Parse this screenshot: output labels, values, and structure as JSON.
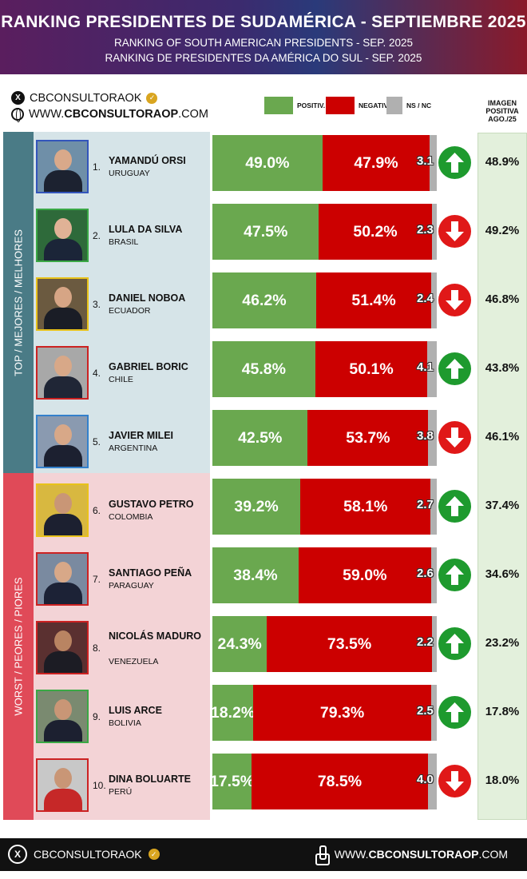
{
  "header": {
    "title": "RANKING PRESIDENTES DE SUDAMÉRICA - SEPTIEMBRE 2025",
    "subtitle_en": "RANKING OF SOUTH AMERICAN PRESIDENTS - SEP. 2025",
    "subtitle_pt": "RANKING DE PRESIDENTES DA AMÉRICA DO SUL - SEP. 2025"
  },
  "social": {
    "handle": "CBCONSULTORAOK",
    "web_prefix": "WWW.",
    "web_main": "CBCONSULTORAOP",
    "web_suffix": ".COM",
    "x_icon": "x-logo-icon",
    "verified_icon": "verified-badge-icon",
    "globe_icon": "globe-icon"
  },
  "legend": {
    "positive": "POSITIV.",
    "negative": "NEGATIV.",
    "ns": "NS / NC"
  },
  "image_header": [
    "IMAGEN",
    "POSITIVA",
    "AGO./25"
  ],
  "bands": {
    "top": "TOP / MEJORES / MELHORES",
    "bottom": "WORST / PEORES / PIORES"
  },
  "colors": {
    "positive": "#6aa84f",
    "negative": "#cc0000",
    "ns": "#b0b0b0",
    "up_arrow": "#1e9a2e",
    "down_arrow": "#e01818",
    "top_band": "#4a7b86",
    "bottom_band": "#e04a58"
  },
  "chart_data": {
    "type": "bar",
    "stacked": true,
    "orientation": "horizontal",
    "title": "RANKING PRESIDENTES DE SUDAMÉRICA - SEPTIEMBRE 2025",
    "categories": [
      "YAMANDÚ ORSI",
      "LULA DA SILVA",
      "DANIEL NOBOA",
      "GABRIEL BORIC",
      "JAVIER MILEI",
      "GUSTAVO PETRO",
      "SANTIAGO PEÑA",
      "NICOLÁS MADURO",
      "LUIS ARCE",
      "DINA BOLUARTE"
    ],
    "series": [
      {
        "name": "POSITIV.",
        "values": [
          49.0,
          47.5,
          46.2,
          45.8,
          42.5,
          39.2,
          38.4,
          24.3,
          18.2,
          17.5
        ]
      },
      {
        "name": "NEGATIV.",
        "values": [
          47.9,
          50.2,
          51.4,
          50.1,
          53.7,
          58.1,
          59.0,
          73.5,
          79.3,
          78.5
        ]
      },
      {
        "name": "NS / NC",
        "values": [
          3.1,
          2.3,
          2.4,
          4.1,
          3.8,
          2.7,
          2.6,
          2.2,
          2.5,
          4.0
        ]
      }
    ],
    "xlim": [
      0,
      100
    ],
    "legend_position": "top"
  },
  "rows": [
    {
      "rank": "1.",
      "name": "YAMANDÚ ORSI",
      "country": "URUGUAY",
      "pos": 49.0,
      "neg": 47.9,
      "ns": 3.1,
      "pos_label": "49.0%",
      "neg_label": "47.9%",
      "ns_label": "3.1",
      "trend": "up",
      "trend_icon": "arrow-up-icon",
      "prev": "48.9%",
      "frame": "#3355bb",
      "bg": "#6f8fa8",
      "suit": "#1c2230",
      "skin": "#d9a98a"
    },
    {
      "rank": "2.",
      "name": "LULA DA SILVA",
      "country": "BRASIL",
      "pos": 47.5,
      "neg": 50.2,
      "ns": 2.3,
      "pos_label": "47.5%",
      "neg_label": "50.2%",
      "ns_label": "2.3",
      "trend": "down",
      "trend_icon": "arrow-down-icon",
      "prev": "49.2%",
      "frame": "#3aa845",
      "bg": "#2e6a3a",
      "suit": "#1b2538",
      "skin": "#e0b296"
    },
    {
      "rank": "3.",
      "name": "DANIEL NOBOA",
      "country": "ECUADOR",
      "pos": 46.2,
      "neg": 51.4,
      "ns": 2.4,
      "pos_label": "46.2%",
      "neg_label": "51.4%",
      "ns_label": "2.4",
      "trend": "down",
      "trend_icon": "arrow-down-icon",
      "prev": "46.8%",
      "frame": "#e8c21a",
      "bg": "#6b5a40",
      "suit": "#1a1d26",
      "skin": "#d6a585"
    },
    {
      "rank": "4.",
      "name": "GABRIEL BORIC",
      "country": "CHILE",
      "pos": 45.8,
      "neg": 50.1,
      "ns": 4.1,
      "pos_label": "45.8%",
      "neg_label": "50.1%",
      "ns_label": "4.1",
      "trend": "up",
      "trend_icon": "arrow-up-icon",
      "prev": "43.8%",
      "frame": "#cc2222",
      "bg": "#a8a8a8",
      "suit": "#202636",
      "skin": "#d8a888"
    },
    {
      "rank": "5.",
      "name": "JAVIER MILEI",
      "country": "ARGENTINA",
      "pos": 42.5,
      "neg": 53.7,
      "ns": 3.8,
      "pos_label": "42.5%",
      "neg_label": "53.7%",
      "ns_label": "3.8",
      "trend": "down",
      "trend_icon": "arrow-down-icon",
      "prev": "46.1%",
      "frame": "#3380cc",
      "bg": "#8a9ab0",
      "suit": "#1c2030",
      "skin": "#d8a888"
    },
    {
      "rank": "6.",
      "name": "GUSTAVO PETRO",
      "country": "COLOMBIA",
      "pos": 39.2,
      "neg": 58.1,
      "ns": 2.7,
      "pos_label": "39.2%",
      "neg_label": "58.1%",
      "ns_label": "2.7",
      "trend": "up",
      "trend_icon": "arrow-up-icon",
      "prev": "37.4%",
      "frame": "#e8c21a",
      "bg": "#d8b840",
      "suit": "#1c2030",
      "skin": "#c99676"
    },
    {
      "rank": "7.",
      "name": "SANTIAGO PEÑA",
      "country": "PARAGUAY",
      "pos": 38.4,
      "neg": 59.0,
      "ns": 2.6,
      "pos_label": "38.4%",
      "neg_label": "59.0%",
      "ns_label": "2.6",
      "trend": "up",
      "trend_icon": "arrow-up-icon",
      "prev": "34.6%",
      "frame": "#cc2222",
      "bg": "#7a8aa0",
      "suit": "#1c2236",
      "skin": "#d8a888"
    },
    {
      "rank": "8.",
      "name": "NICOLÁS MADURO",
      "country": "VENEZUELA",
      "pos": 24.3,
      "neg": 73.5,
      "ns": 2.2,
      "pos_label": "24.3%",
      "neg_label": "73.5%",
      "ns_label": "2.2",
      "trend": "up",
      "trend_icon": "arrow-up-icon",
      "prev": "23.2%",
      "frame": "#cc2222",
      "bg": "#5a3030",
      "suit": "#1c1c24",
      "skin": "#b98462"
    },
    {
      "rank": "9.",
      "name": "LUIS ARCE",
      "country": "BOLIVIA",
      "pos": 18.2,
      "neg": 79.3,
      "ns": 2.5,
      "pos_label": "18.2%",
      "neg_label": "79.3%",
      "ns_label": "2.5",
      "trend": "up",
      "trend_icon": "arrow-up-icon",
      "prev": "17.8%",
      "frame": "#3aa845",
      "bg": "#7a8a70",
      "suit": "#1c2030",
      "skin": "#c99676"
    },
    {
      "rank": "10.",
      "name": "DINA BOLUARTE",
      "country": "PERÚ",
      "pos": 17.5,
      "neg": 78.5,
      "ns": 4.0,
      "pos_label": "17.5%",
      "neg_label": "78.5%",
      "ns_label": "4.0",
      "trend": "down",
      "trend_icon": "arrow-down-icon",
      "prev": "18.0%",
      "frame": "#cc2222",
      "bg": "#c8c8c8",
      "suit": "#c62828",
      "skin": "#c99676"
    }
  ],
  "footer": {
    "handle": "CBCONSULTORAOK",
    "web_prefix": "WWW.",
    "web_main": "CBCONSULTORAOP",
    "web_suffix": ".COM",
    "x_icon": "x-logo-icon",
    "verified_icon": "verified-badge-icon",
    "pointer_icon": "pointer-hand-icon"
  }
}
